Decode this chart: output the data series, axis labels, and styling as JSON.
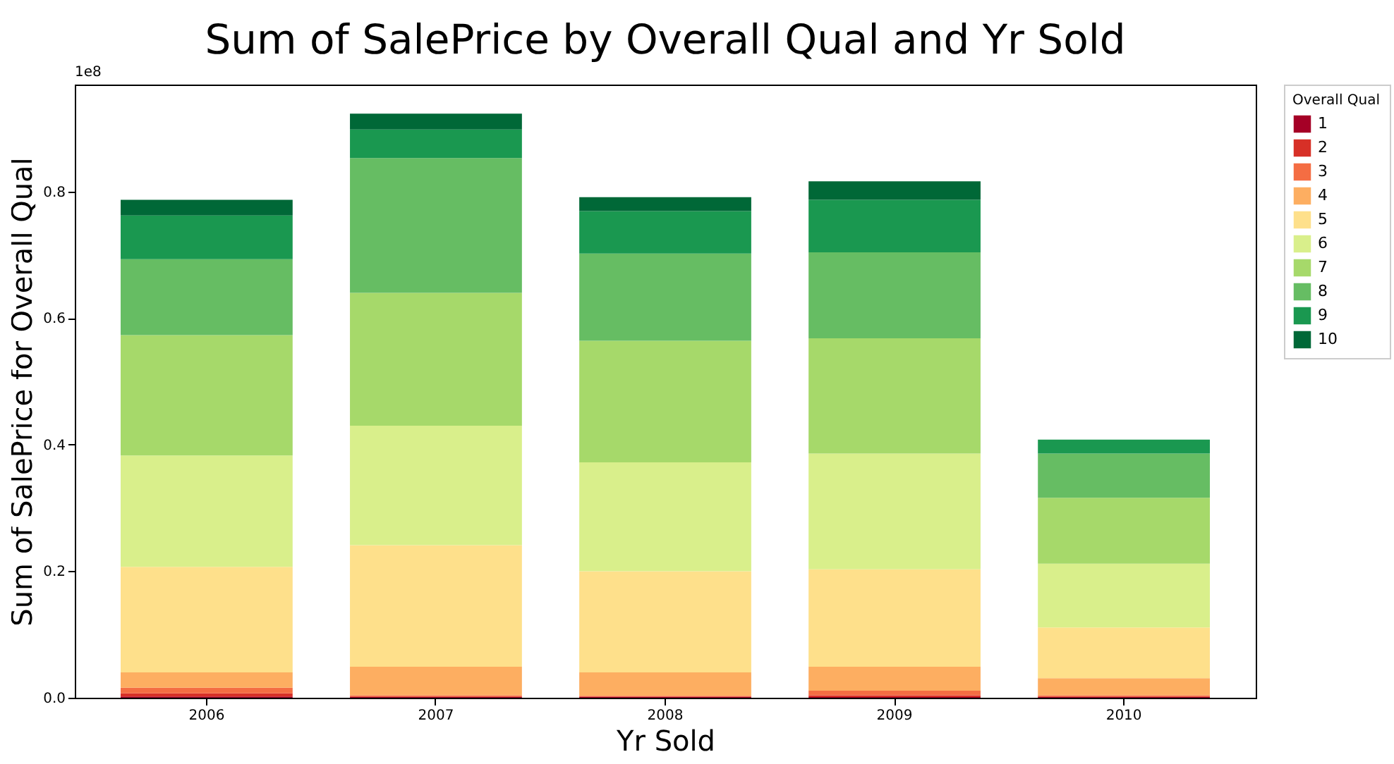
{
  "chart_data": {
    "type": "bar",
    "title": "Sum of SalePrice by Overall Qual and Yr Sold",
    "xlabel": "Yr Sold",
    "ylabel": "Sum of SalePrice for Overall Qual",
    "legend_title": "Overall Qual",
    "annotations": [
      "1e8"
    ],
    "stacked": true,
    "grid": false,
    "legend": "right",
    "categories": [
      "2006",
      "2007",
      "2008",
      "2009",
      "2010"
    ],
    "ylim": [
      0,
      0.969
    ],
    "yticks": [
      {
        "value": 0,
        "label": "0.0"
      },
      {
        "value": 0.2,
        "label": "0.2"
      },
      {
        "value": 0.4,
        "label": "0.4"
      },
      {
        "value": 0.6,
        "label": "0.6"
      },
      {
        "value": 0.8,
        "label": "0.8"
      }
    ],
    "series": [
      {
        "name": "1",
        "color": "#a50026",
        "values": [
          0.002,
          0.001,
          0.001,
          0.001,
          0.001
        ]
      },
      {
        "name": "2",
        "color": "#d73027",
        "values": [
          0.005,
          0.001,
          0.001,
          0.003,
          0.001
        ]
      },
      {
        "name": "3",
        "color": "#f46d43",
        "values": [
          0.009,
          0.002,
          0.001,
          0.007,
          0.002
        ]
      },
      {
        "name": "4",
        "color": "#fdae61",
        "values": [
          0.024,
          0.045,
          0.037,
          0.038,
          0.027
        ]
      },
      {
        "name": "5",
        "color": "#fee08b",
        "values": [
          0.167,
          0.192,
          0.16,
          0.154,
          0.08
        ]
      },
      {
        "name": "6",
        "color": "#d9ef8b",
        "values": [
          0.176,
          0.189,
          0.172,
          0.183,
          0.101
        ]
      },
      {
        "name": "7",
        "color": "#a6d96a",
        "values": [
          0.19,
          0.21,
          0.192,
          0.182,
          0.104
        ]
      },
      {
        "name": "8",
        "color": "#66bd63",
        "values": [
          0.12,
          0.213,
          0.138,
          0.136,
          0.07
        ]
      },
      {
        "name": "9",
        "color": "#1a9850",
        "values": [
          0.069,
          0.045,
          0.067,
          0.083,
          0.022
        ]
      },
      {
        "name": "10",
        "color": "#006837",
        "values": [
          0.025,
          0.025,
          0.022,
          0.029,
          null
        ]
      }
    ]
  }
}
